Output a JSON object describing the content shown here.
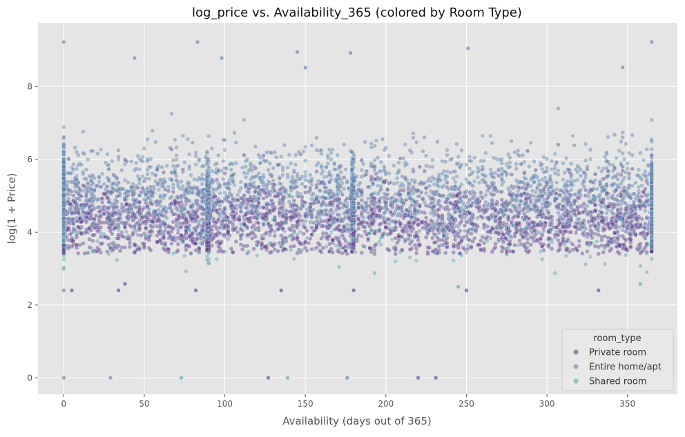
{
  "chart_data": {
    "type": "scatter",
    "title": "log_price vs. Availability_365 (colored by Room Type)",
    "xlabel": "Availability (days out of 365)",
    "ylabel": "log(1 + Price)",
    "xlim": [
      -16,
      381
    ],
    "ylim": [
      -0.45,
      9.75
    ],
    "x_ticks": [
      0,
      50,
      100,
      150,
      200,
      250,
      300,
      350
    ],
    "y_ticks": [
      0,
      2,
      4,
      6,
      8
    ],
    "grid": true,
    "legend_title": "room_type",
    "legend_position": "bottom-right",
    "series": [
      {
        "name": "Private room",
        "color": "#4b2e83",
        "note_center": 4.3,
        "typical_range": [
          3.4,
          6.0
        ]
      },
      {
        "name": "Entire home/apt",
        "color": "#5179a4",
        "note_center": 5.1,
        "typical_range": [
          3.8,
          7.0
        ]
      },
      {
        "name": "Shared room",
        "color": "#4a9bab",
        "note_center": 3.7,
        "typical_range": [
          2.8,
          4.4
        ]
      }
    ],
    "outliers": [
      {
        "x": 0,
        "y": 0,
        "s": 1
      },
      {
        "x": 0,
        "y": 9.22,
        "s": 1
      },
      {
        "x": 0,
        "y": 2.4,
        "s": 1
      },
      {
        "x": 29,
        "y": 0,
        "s": 1
      },
      {
        "x": 73,
        "y": 0,
        "s": 2
      },
      {
        "x": 127,
        "y": 0,
        "s": 0
      },
      {
        "x": 139,
        "y": 0,
        "s": 2
      },
      {
        "x": 176,
        "y": 0,
        "s": 1
      },
      {
        "x": 220,
        "y": 0,
        "s": 0
      },
      {
        "x": 231,
        "y": 0,
        "s": 0
      },
      {
        "x": 83,
        "y": 9.22,
        "s": 1
      },
      {
        "x": 82,
        "y": 2.4,
        "s": 0
      },
      {
        "x": 180,
        "y": 2.4,
        "s": 0
      },
      {
        "x": 251,
        "y": 9.05,
        "s": 1
      },
      {
        "x": 145,
        "y": 8.95,
        "s": 1
      },
      {
        "x": 178,
        "y": 8.92,
        "s": 1
      },
      {
        "x": 365,
        "y": 9.22,
        "s": 1
      },
      {
        "x": 44,
        "y": 8.78,
        "s": 1
      },
      {
        "x": 98,
        "y": 8.78,
        "s": 1
      },
      {
        "x": 347,
        "y": 8.53,
        "s": 1
      },
      {
        "x": 150,
        "y": 8.52,
        "s": 1
      },
      {
        "x": 332,
        "y": 2.4,
        "s": 0
      },
      {
        "x": 250,
        "y": 2.4,
        "s": 0
      },
      {
        "x": 245,
        "y": 2.5,
        "s": 2
      },
      {
        "x": 358,
        "y": 2.58,
        "s": 2
      },
      {
        "x": 34,
        "y": 2.4,
        "s": 0
      },
      {
        "x": 38,
        "y": 2.58,
        "s": 0
      },
      {
        "x": 5,
        "y": 2.4,
        "s": 0
      },
      {
        "x": 135,
        "y": 2.4,
        "s": 0
      }
    ]
  }
}
